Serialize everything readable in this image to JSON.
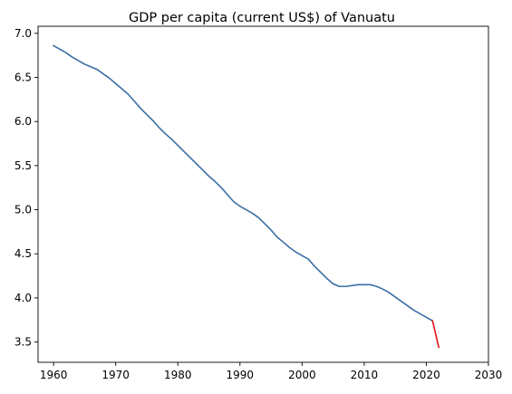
{
  "chart_data": {
    "type": "line",
    "title": "GDP per capita (current US$) of Vanuatu",
    "xlabel": "",
    "ylabel": "",
    "xlim": [
      1957.5,
      2030
    ],
    "ylim": [
      3.27,
      7.08
    ],
    "x_ticks": [
      1960,
      1970,
      1980,
      1990,
      2000,
      2010,
      2020,
      2030
    ],
    "y_ticks": [
      3.5,
      4.0,
      4.5,
      5.0,
      5.5,
      6.0,
      6.5,
      7.0
    ],
    "x_tick_labels": [
      "1960",
      "1970",
      "1980",
      "1990",
      "2000",
      "2010",
      "2020",
      "2030"
    ],
    "y_tick_labels": [
      "3.5",
      "4.0",
      "4.5",
      "5.0",
      "5.5",
      "6.0",
      "6.5",
      "7.0"
    ],
    "grid": false,
    "series": [
      {
        "color": "#3a6ea5",
        "x": [
          1960,
          1961,
          1962,
          1963,
          1964,
          1965,
          1966,
          1967,
          1968,
          1969,
          1970,
          1971,
          1972,
          1973,
          1974,
          1975,
          1976,
          1977,
          1978,
          1979,
          1980,
          1981,
          1982,
          1983,
          1984,
          1985,
          1986,
          1987,
          1988,
          1989,
          1990,
          1991,
          1992,
          1993,
          1994,
          1995,
          1996,
          1997,
          1998,
          1999,
          2000,
          2001,
          2002,
          2003,
          2004,
          2005,
          2006,
          2007,
          2008,
          2009,
          2010,
          2011,
          2012,
          2013,
          2014,
          2015,
          2016,
          2017,
          2018,
          2019,
          2020,
          2021
        ],
        "values": [
          6.86,
          6.82,
          6.78,
          6.73,
          6.69,
          6.65,
          6.62,
          6.59,
          6.54,
          6.49,
          6.43,
          6.37,
          6.31,
          6.23,
          6.15,
          6.08,
          6.01,
          5.93,
          5.86,
          5.8,
          5.73,
          5.66,
          5.59,
          5.52,
          5.45,
          5.38,
          5.32,
          5.25,
          5.17,
          5.09,
          5.04,
          5.0,
          4.96,
          4.91,
          4.84,
          4.77,
          4.69,
          4.63,
          4.57,
          4.52,
          4.48,
          4.44,
          4.36,
          4.29,
          4.22,
          4.16,
          4.13,
          4.13,
          4.14,
          4.15,
          4.15,
          4.15,
          4.13,
          4.1,
          4.06,
          4.01,
          3.96,
          3.91,
          3.86,
          3.82,
          3.78,
          3.74
        ]
      },
      {
        "color": "#e8121a",
        "x": [
          2021,
          2022
        ],
        "values": [
          3.74,
          3.44
        ]
      }
    ]
  }
}
